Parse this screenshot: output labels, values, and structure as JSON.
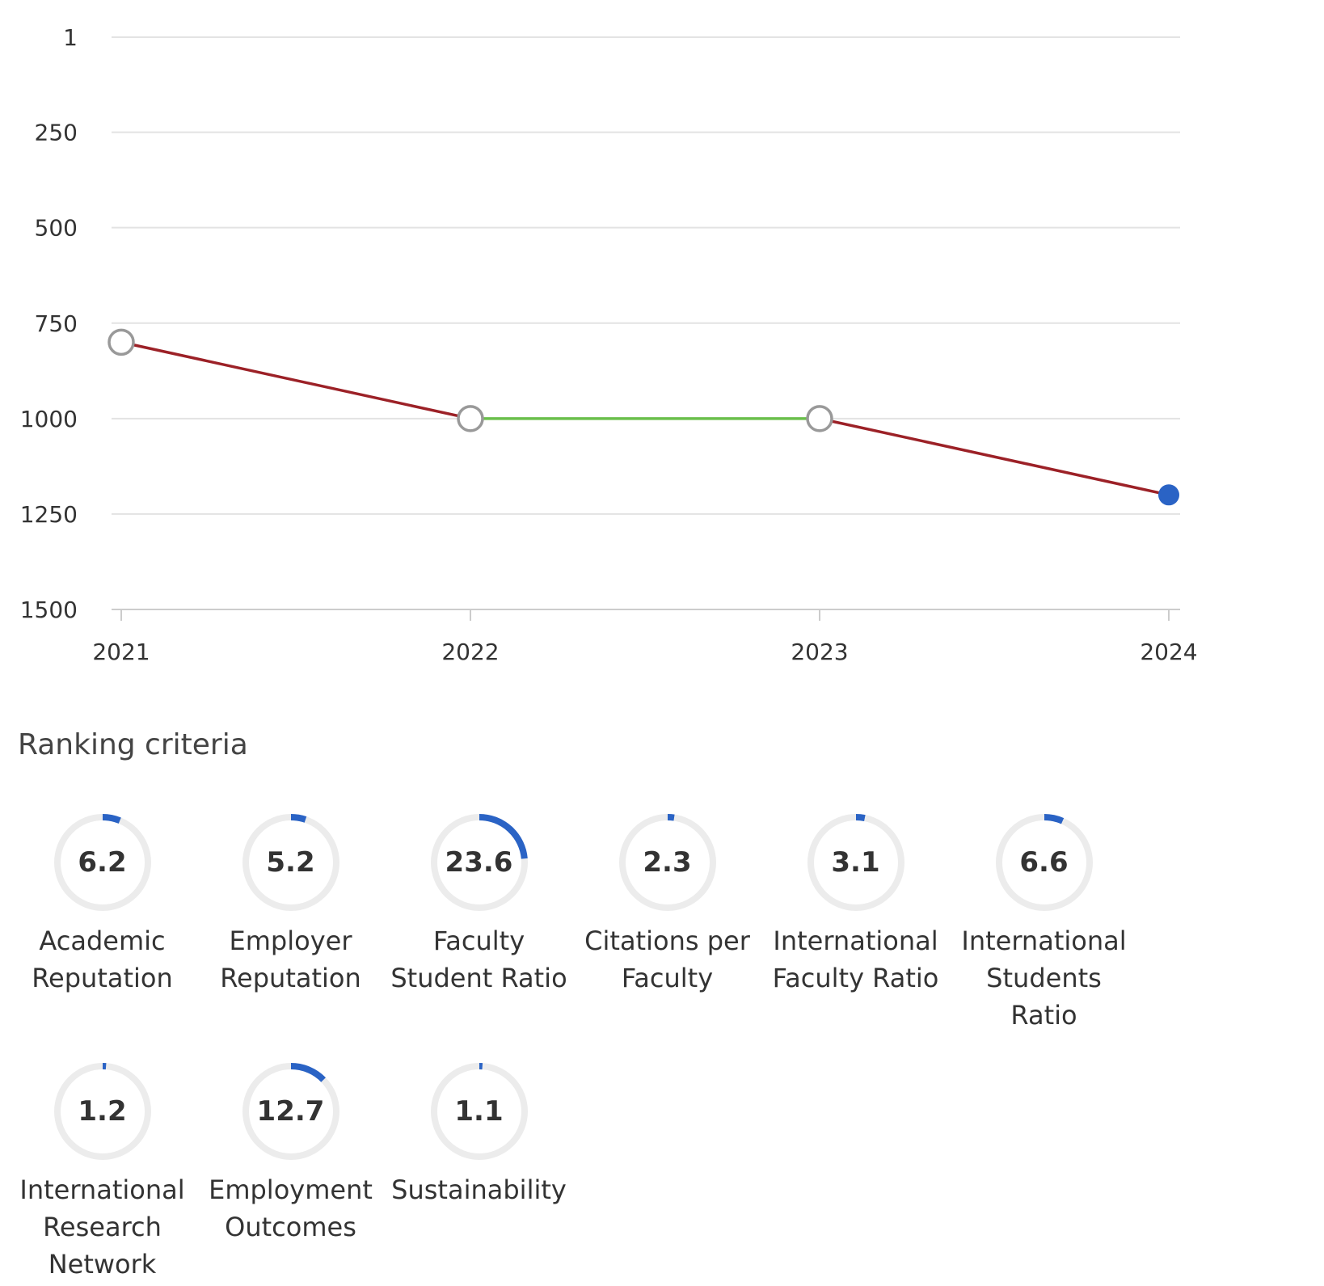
{
  "chart_data": {
    "type": "line",
    "x": [
      "2021",
      "2022",
      "2023",
      "2024"
    ],
    "values": [
      800,
      1000,
      1000,
      1200
    ],
    "y_ticks": [
      "1",
      "250",
      "500",
      "750",
      "1000",
      "1250",
      "1500"
    ],
    "ylim": [
      1,
      1500
    ],
    "y_inverted": true,
    "grid": true,
    "colors": {
      "decline": "#9c2127",
      "steady": "#6abf4b",
      "current_point": "#2a63c5",
      "past_point_stroke": "#999999",
      "gridline": "#e3e3e3",
      "axis": "#cccccc"
    }
  },
  "section": {
    "title": "Ranking criteria"
  },
  "criteria": [
    {
      "value": "6.2",
      "label": "Academic Reputation"
    },
    {
      "value": "5.2",
      "label": "Employer Reputation"
    },
    {
      "value": "23.6",
      "label": "Faculty Student Ratio"
    },
    {
      "value": "2.3",
      "label": "Citations per Faculty"
    },
    {
      "value": "3.1",
      "label": "International Faculty Ratio"
    },
    {
      "value": "6.6",
      "label": "International Students Ratio"
    },
    {
      "value": "1.2",
      "label": "International Research Network"
    },
    {
      "value": "12.7",
      "label": "Employment Outcomes"
    },
    {
      "value": "1.1",
      "label": "Sustainability"
    }
  ],
  "gauge_colors": {
    "track": "#ececec",
    "fill": "#2a63c5"
  }
}
